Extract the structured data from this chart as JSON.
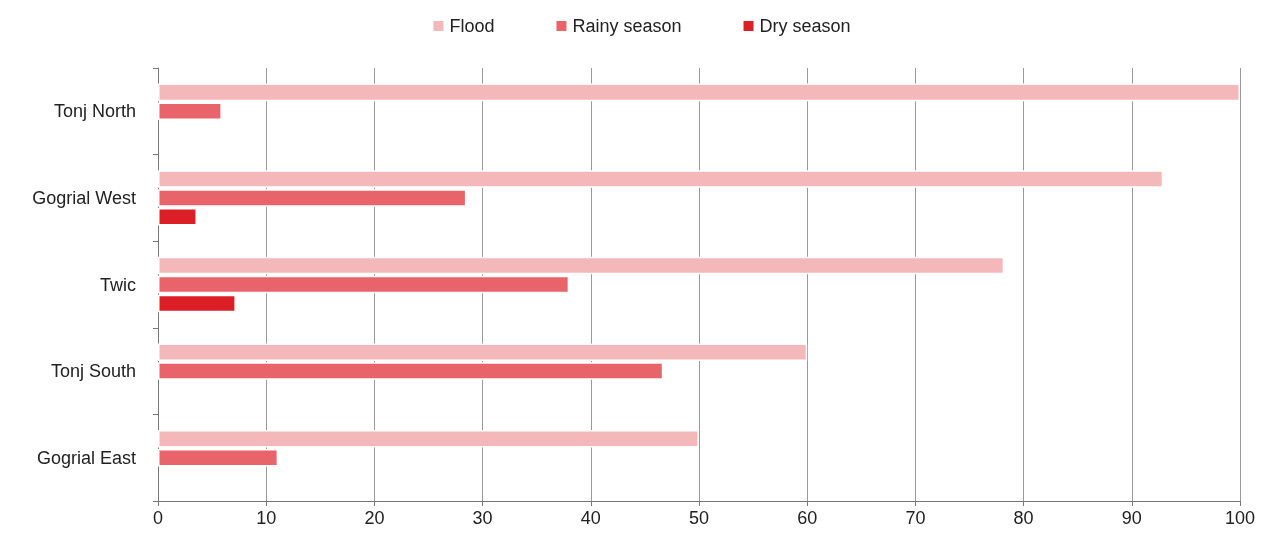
{
  "chart_data": {
    "type": "bar",
    "orientation": "horizontal",
    "categories": [
      "Tonj North",
      "Gogrial West",
      "Twic",
      "Tonj South",
      "Gogrial East"
    ],
    "series": [
      {
        "name": "Flood",
        "color": "#f4b8bb",
        "values": [
          100,
          92.9,
          78.2,
          60,
          50
        ]
      },
      {
        "name": "Rainy season",
        "color": "#e8636a",
        "values": [
          5.9,
          28.5,
          38,
          46.7,
          11.1
        ]
      },
      {
        "name": "Dry season",
        "color": "#dc1f26",
        "values": [
          null,
          3.6,
          7.2,
          null,
          null
        ]
      }
    ],
    "xlim": [
      0,
      100
    ],
    "xticks": [
      0,
      10,
      20,
      30,
      40,
      50,
      60,
      70,
      80,
      90,
      100
    ],
    "grid": "x",
    "legend": "top"
  }
}
